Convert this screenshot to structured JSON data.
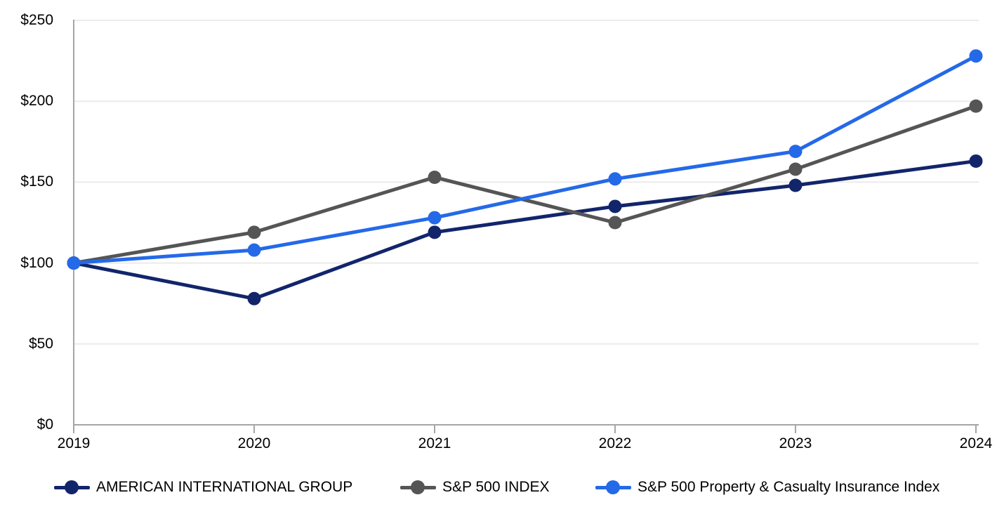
{
  "chart_data": {
    "type": "line",
    "title": "",
    "categories": [
      "2019",
      "2020",
      "2021",
      "2022",
      "2023",
      "2024"
    ],
    "y_tick_labels": [
      "$250",
      "$200",
      "$150",
      "$100",
      "$50",
      "$0"
    ],
    "ylim": [
      0,
      250
    ],
    "y_tick_step": 50,
    "grid": true,
    "legend_position": "bottom",
    "series": [
      {
        "name": "AMERICAN INTERNATIONAL GROUP",
        "color": "#12256b",
        "values": [
          100,
          78,
          119,
          135,
          148,
          163
        ]
      },
      {
        "name": "S&P 500 INDEX",
        "color": "#555555",
        "values": [
          100,
          119,
          153,
          125,
          158,
          197
        ]
      },
      {
        "name": "S&P 500 Property & Casualty Insurance Index",
        "color": "#2469e8",
        "values": [
          100,
          108,
          128,
          152,
          169,
          228
        ]
      }
    ]
  },
  "colors": {
    "axis": "#a6a6a6",
    "gridline": "#ebebeb",
    "navy": "#12256b",
    "gray": "#555555",
    "blue": "#2469e8"
  }
}
